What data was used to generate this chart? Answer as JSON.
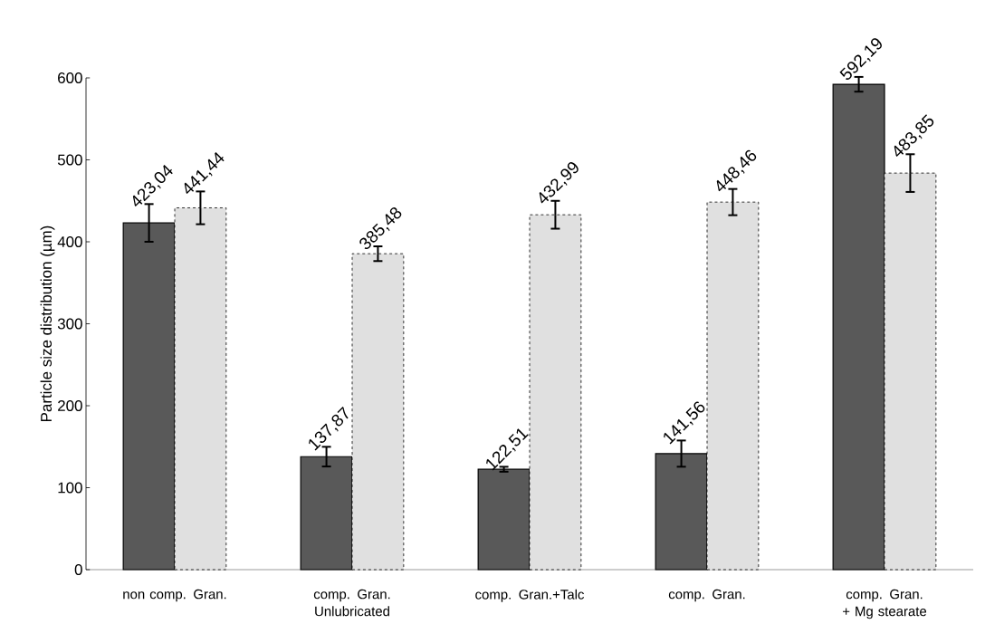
{
  "chart_data": {
    "type": "bar",
    "ylabel": "Particle size distribution (µm)",
    "categories": [
      "non comp. Gran.",
      "comp. Gran. Unlubricated",
      "comp. Gran.+Talc",
      "comp. Gran.",
      "comp. Gran. + Mg stearate"
    ],
    "series": [
      {
        "color": "#595959",
        "line_style": "solid",
        "values": [
          423.04,
          137.87,
          122.51,
          141.56,
          592.19
        ],
        "errors": [
          23,
          12,
          3,
          16,
          9
        ],
        "value_labels": [
          "423,04",
          "137,87",
          "122,51",
          "141,56",
          "592,19"
        ]
      },
      {
        "color": "#e0e0e0",
        "line_style": "dashed",
        "values": [
          441.44,
          385.48,
          432.99,
          448.46,
          483.85
        ],
        "errors": [
          20,
          9,
          17,
          16,
          23
        ],
        "value_labels": [
          "441,44",
          "385,48",
          "432,99",
          "448,46",
          "483,85"
        ]
      }
    ],
    "ylim": [
      0,
      600
    ],
    "yticks": [
      0,
      100,
      200,
      300,
      400,
      500,
      600
    ],
    "grid": false,
    "legend": false
  }
}
